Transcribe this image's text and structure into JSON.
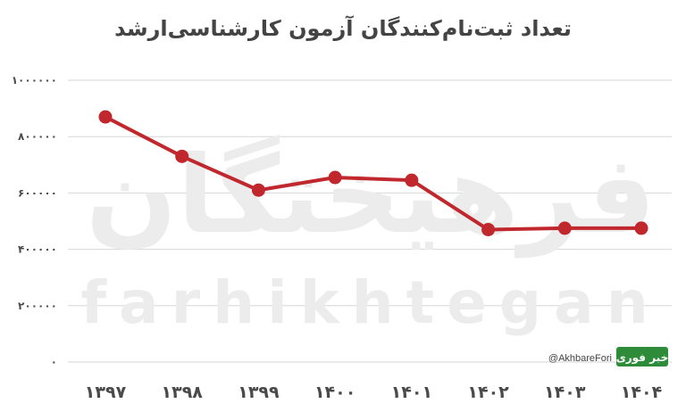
{
  "chart_data": {
    "type": "line",
    "title": "تعداد ثبت‌نام‌کنندگان آزمون کارشناسی‌ارشد",
    "xlabel": "",
    "ylabel": "",
    "categories": [
      "۱۳۹۷",
      "۱۳۹۸",
      "۱۳۹۹",
      "۱۴۰۰",
      "۱۴۰۱",
      "۱۴۰۲",
      "۱۴۰۳",
      "۱۴۰۴"
    ],
    "series": [
      {
        "values": [
          870000,
          730000,
          610000,
          655000,
          645000,
          470000,
          475000,
          475000
        ]
      }
    ],
    "ylim": [
      0,
      1000000
    ],
    "yticks": [
      0,
      200000,
      400000,
      600000,
      800000,
      1000000
    ],
    "ytick_labels": [
      "۰",
      "۲۰۰۰۰۰",
      "۴۰۰۰۰۰",
      "۶۰۰۰۰۰",
      "۸۰۰۰۰۰",
      "۱۰۰۰۰۰۰"
    ],
    "grid": true,
    "line_color": "#c0282d"
  },
  "watermark": {
    "persian": "فرهیختگان",
    "latin": "farhikhtegan"
  },
  "credit": {
    "handle": "@AkhbareFori",
    "logo_text": "خبر فوری",
    "logo_color": "#2e8b3a"
  }
}
